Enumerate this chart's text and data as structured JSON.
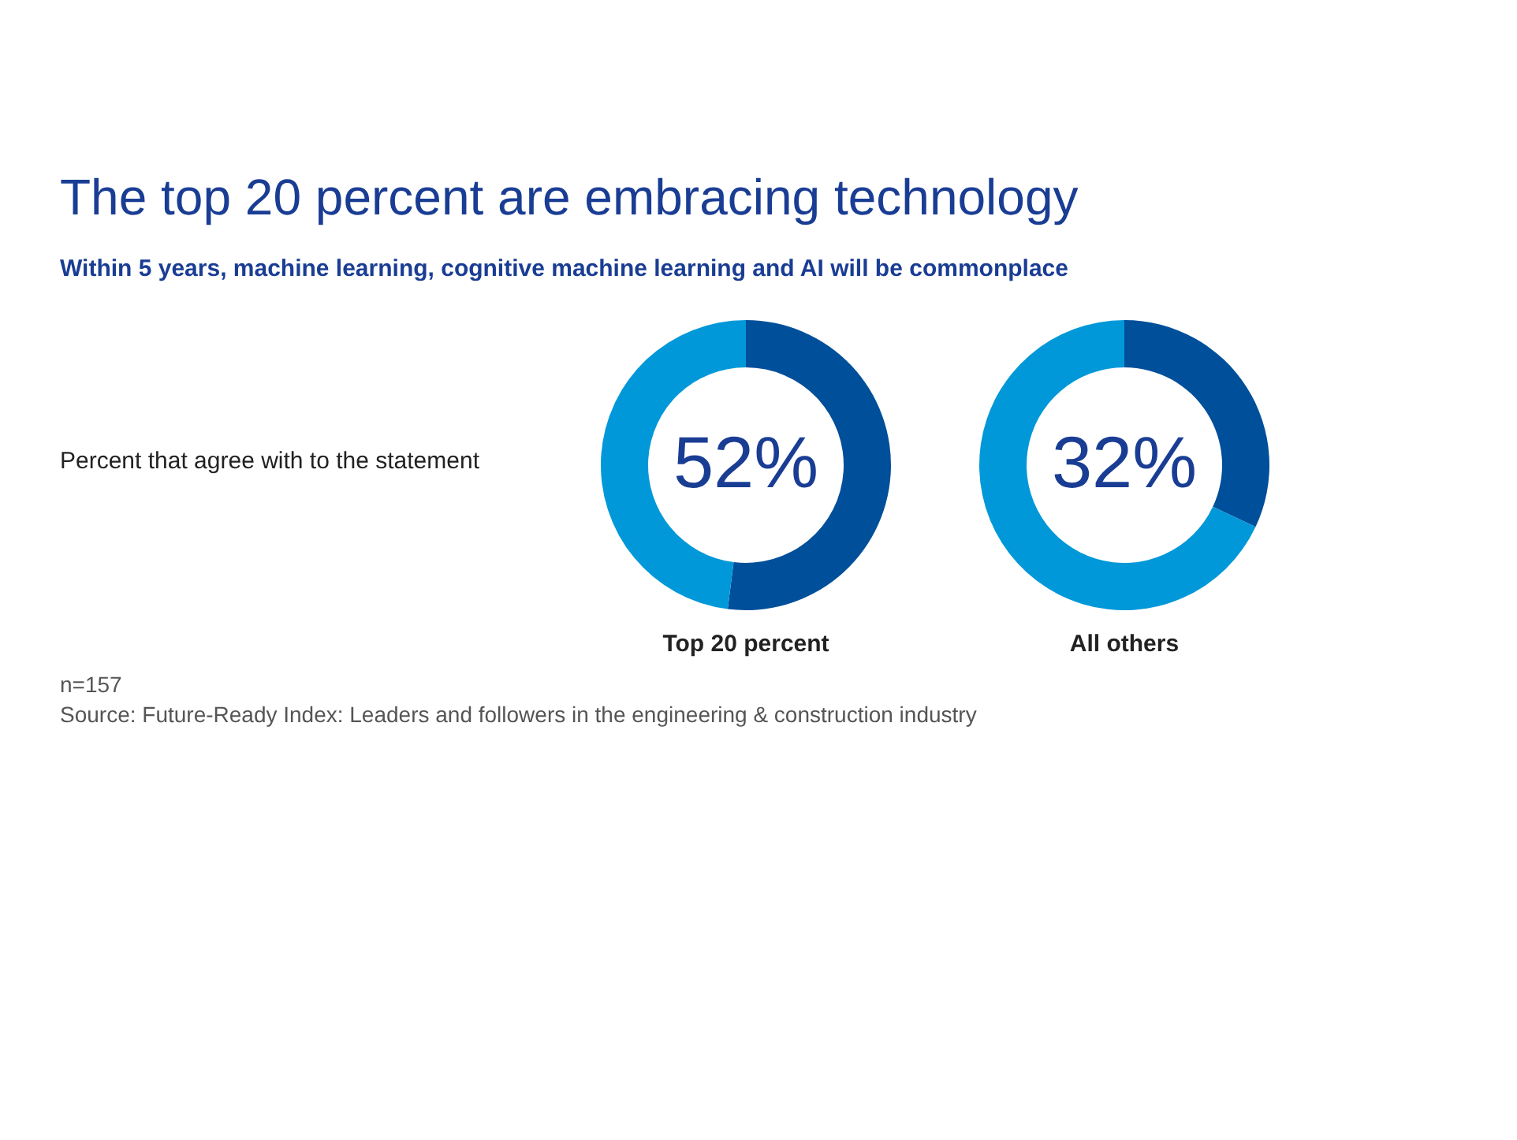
{
  "chart_data": [
    {
      "type": "other",
      "title": "The top 20 percent are embracing technology",
      "subtitle": "Within 5 years, machine learning, cognitive machine learning and AI will be  commonplace",
      "annotations": [
        "Percent that agree with to the statement",
        "n=157",
        "Source: Future-Ready Index: Leaders and followers in the engineering & construction industry"
      ]
    },
    {
      "type": "donut",
      "title": "Top 20 percent",
      "categories": [
        null,
        null
      ],
      "values": [
        52,
        48
      ],
      "colors": [
        "#004f9a",
        "#0098d8"
      ],
      "value_labels": [
        "52%",
        null
      ]
    },
    {
      "type": "donut",
      "title": "All others",
      "categories": [
        null,
        null
      ],
      "values": [
        32,
        68
      ],
      "colors": [
        "#004f9a",
        "#0098d8"
      ],
      "value_labels": [
        "32%",
        null
      ]
    }
  ]
}
